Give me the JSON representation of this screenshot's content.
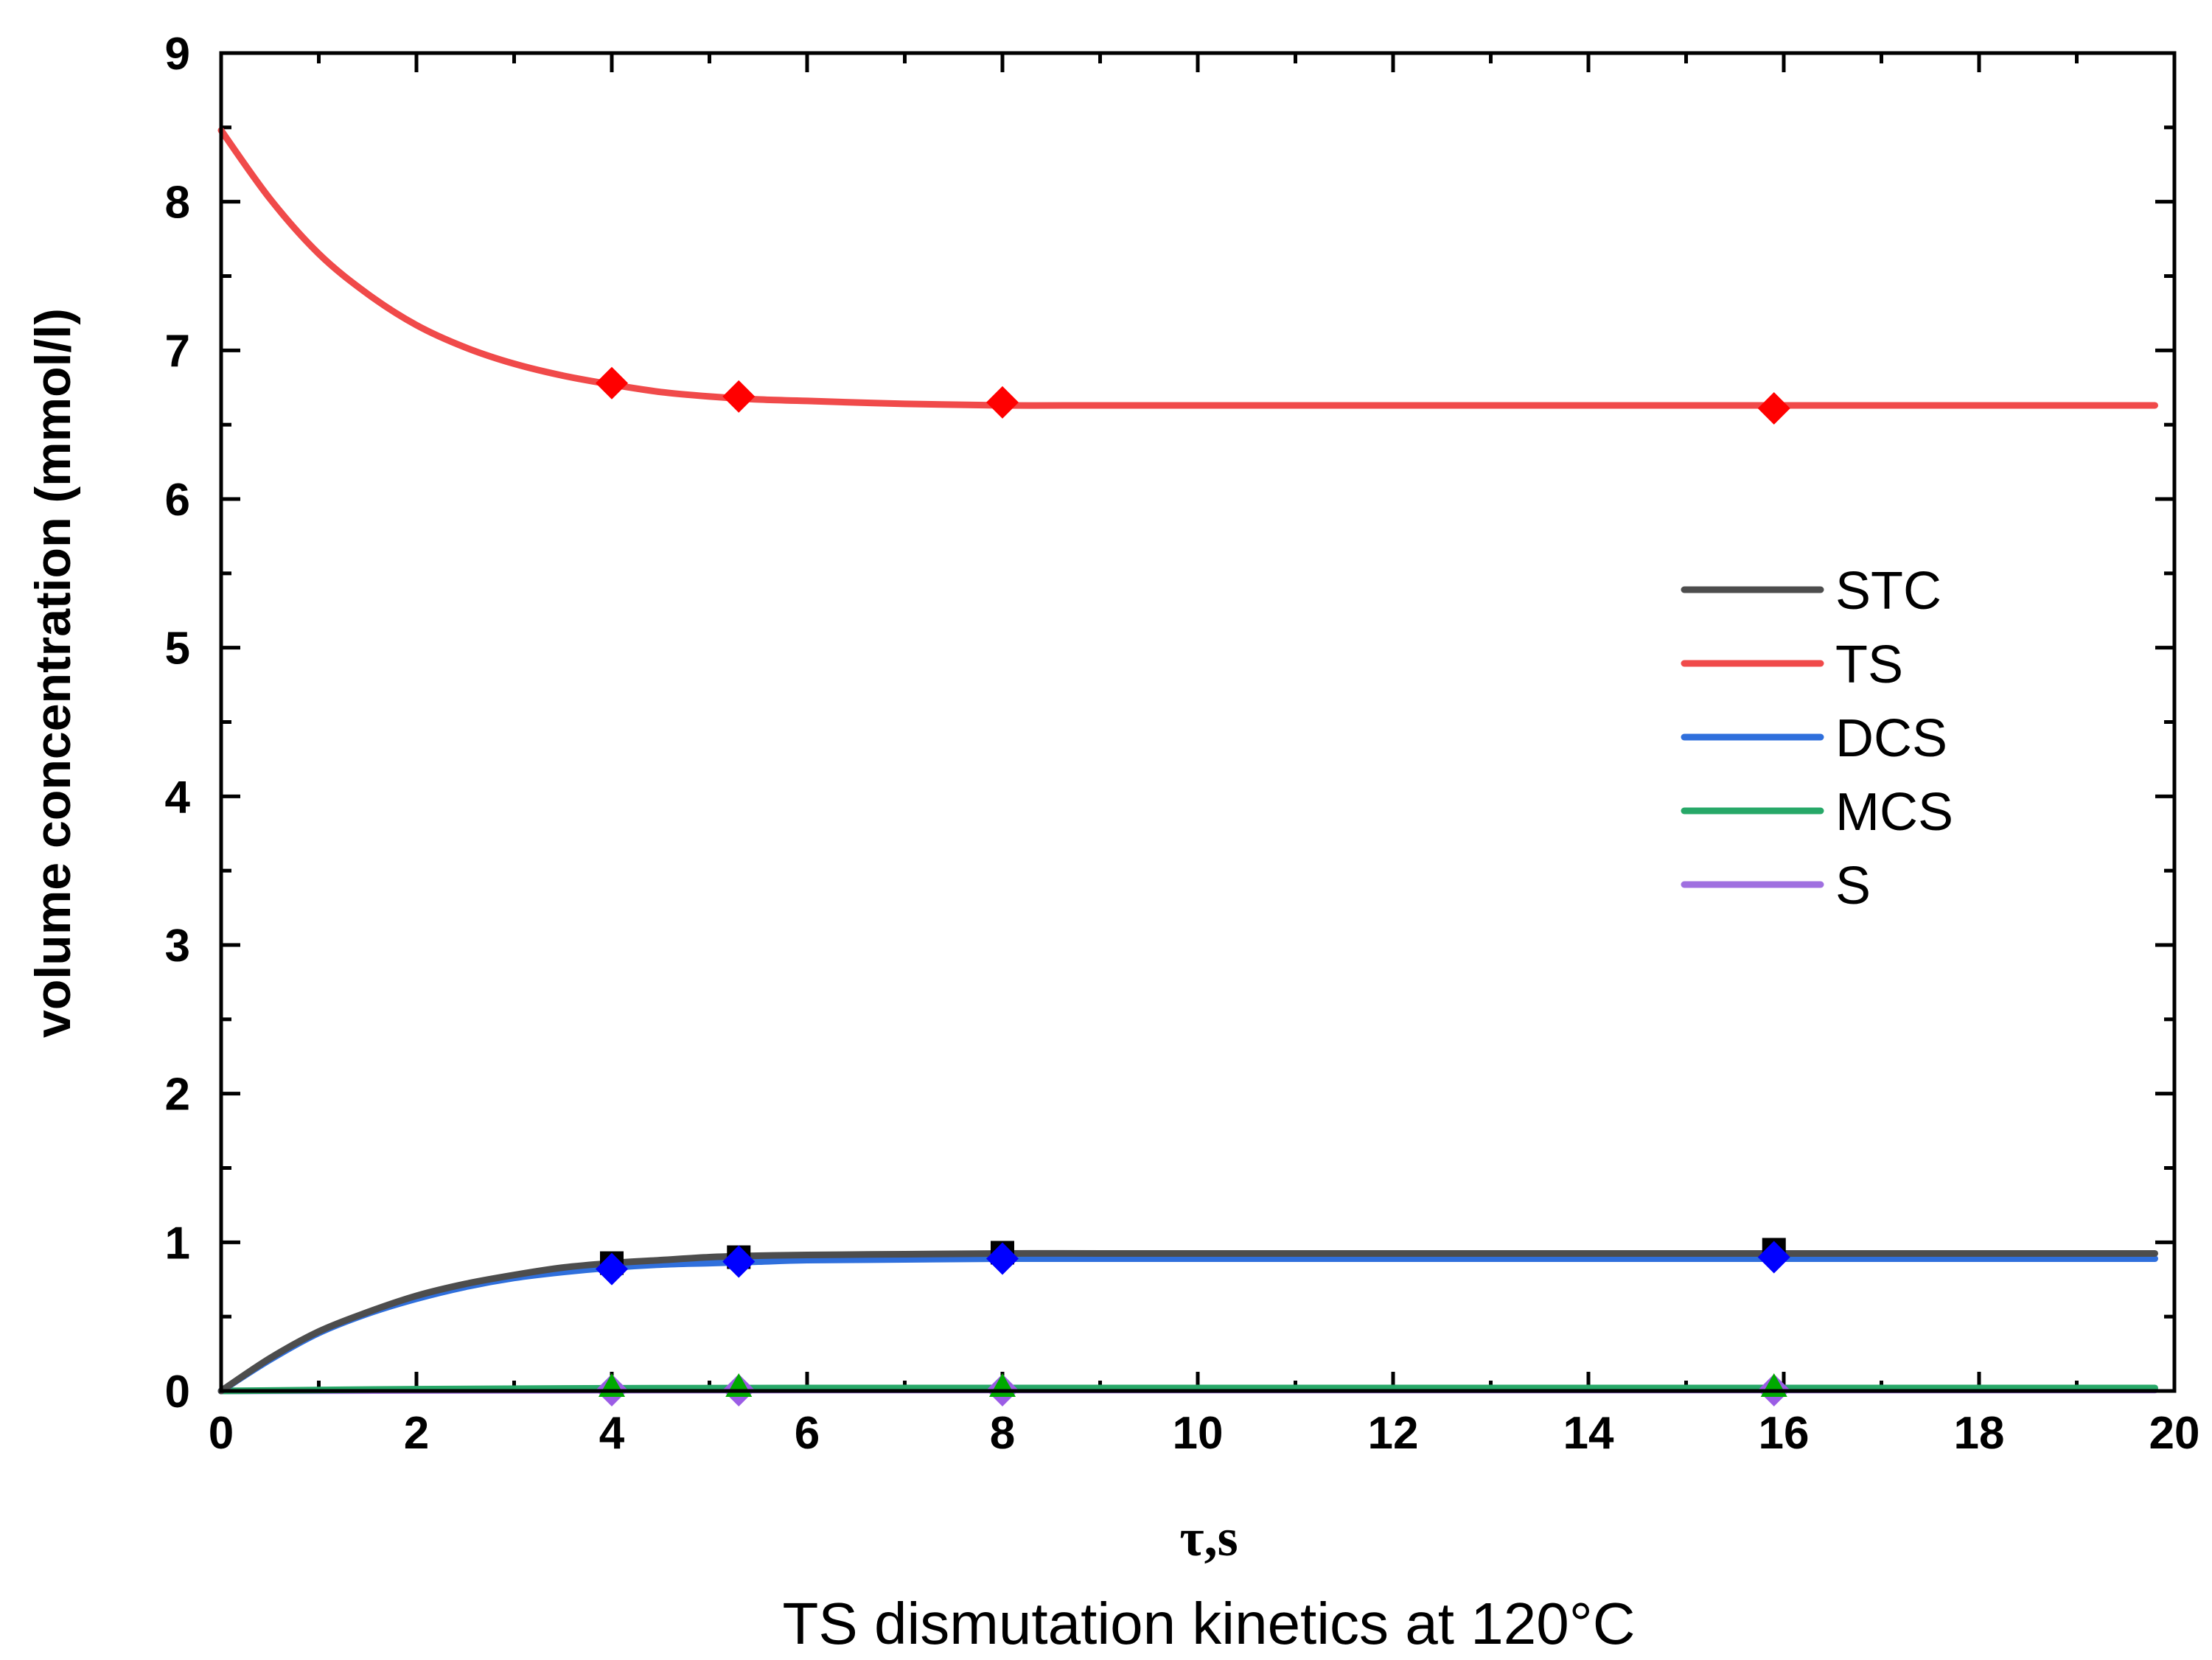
{
  "chart_data": {
    "type": "line",
    "title": "",
    "caption": "TS dismutation kinetics at 120°C",
    "xlabel": "τ,s",
    "ylabel": "volume concentration (mmol/l)",
    "xlim": [
      0,
      20
    ],
    "ylim": [
      0,
      9
    ],
    "xticks": [
      "0",
      "2",
      "4",
      "6",
      "8",
      "10",
      "12",
      "14",
      "16",
      "18",
      "20"
    ],
    "yticks": [
      "0",
      "1",
      "2",
      "3",
      "4",
      "5",
      "6",
      "7",
      "8",
      "9"
    ],
    "legend_position": "right-middle",
    "series": [
      {
        "name": "STC",
        "color": "#4d4d4d",
        "marker": "square",
        "marker_color": "#000000",
        "curve_x": [
          0,
          0.5,
          1,
          1.5,
          2,
          2.5,
          3,
          3.5,
          4,
          4.5,
          5,
          5.5,
          6,
          7,
          8,
          9,
          10,
          12,
          14,
          16,
          18,
          19.8
        ],
        "curve_y": [
          0,
          0.22,
          0.4,
          0.53,
          0.64,
          0.72,
          0.78,
          0.83,
          0.86,
          0.88,
          0.9,
          0.91,
          0.915,
          0.92,
          0.925,
          0.925,
          0.925,
          0.925,
          0.925,
          0.925,
          0.925,
          0.925
        ],
        "points_x": [
          4,
          5.3,
          8,
          15.9
        ],
        "points_y": [
          0.86,
          0.9,
          0.93,
          0.95
        ]
      },
      {
        "name": "TS",
        "color": "#f04a4a",
        "marker": "diamond",
        "marker_color": "#ff0000",
        "curve_x": [
          0,
          0.5,
          1,
          1.5,
          2,
          2.5,
          3,
          3.5,
          4,
          4.5,
          5,
          5.5,
          6,
          7,
          8,
          9,
          10,
          12,
          14,
          16,
          18,
          19.8
        ],
        "curve_y": [
          8.48,
          8.02,
          7.65,
          7.38,
          7.17,
          7.02,
          6.91,
          6.83,
          6.77,
          6.72,
          6.69,
          6.67,
          6.66,
          6.64,
          6.63,
          6.63,
          6.63,
          6.63,
          6.63,
          6.63,
          6.63,
          6.63
        ],
        "points_x": [
          4,
          5.3,
          8,
          15.9
        ],
        "points_y": [
          6.78,
          6.69,
          6.65,
          6.61
        ]
      },
      {
        "name": "DCS",
        "color": "#2f6fdc",
        "marker": "diamond",
        "marker_color": "#0000ff",
        "curve_x": [
          0,
          0.5,
          1,
          1.5,
          2,
          2.5,
          3,
          3.5,
          4,
          4.5,
          5,
          5.5,
          6,
          7,
          8,
          9,
          10,
          12,
          14,
          16,
          18,
          19.8
        ],
        "curve_y": [
          0,
          0.21,
          0.39,
          0.52,
          0.62,
          0.7,
          0.76,
          0.8,
          0.83,
          0.85,
          0.86,
          0.87,
          0.88,
          0.885,
          0.89,
          0.89,
          0.89,
          0.89,
          0.89,
          0.89,
          0.89,
          0.89
        ],
        "points_x": [
          4,
          5.3,
          8,
          15.9
        ],
        "points_y": [
          0.82,
          0.87,
          0.89,
          0.9
        ]
      },
      {
        "name": "MCS",
        "color": "#27a868",
        "marker": "triangle",
        "marker_color": "#00aa00",
        "curve_x": [
          0,
          2,
          4,
          6,
          8,
          10,
          12,
          14,
          16,
          18,
          19.8
        ],
        "curve_y": [
          0,
          0.012,
          0.018,
          0.02,
          0.02,
          0.02,
          0.02,
          0.02,
          0.02,
          0.02,
          0.02
        ],
        "points_x": [
          4,
          5.3,
          8,
          15.9
        ],
        "points_y": [
          0.02,
          0.02,
          0.02,
          0.02
        ]
      },
      {
        "name": "S",
        "color": "#a070e0",
        "marker": "diamond",
        "marker_color": "#9b5de5",
        "curve_x": [
          0,
          2,
          4,
          6,
          8,
          10,
          12,
          14,
          16,
          18,
          19.8
        ],
        "curve_y": [
          0,
          0.003,
          0.005,
          0.006,
          0.006,
          0.006,
          0.006,
          0.006,
          0.006,
          0.006,
          0.006
        ],
        "points_x": [
          4,
          5.3,
          8,
          15.9
        ],
        "points_y": [
          0.005,
          0.005,
          0.005,
          0.005
        ]
      }
    ]
  }
}
